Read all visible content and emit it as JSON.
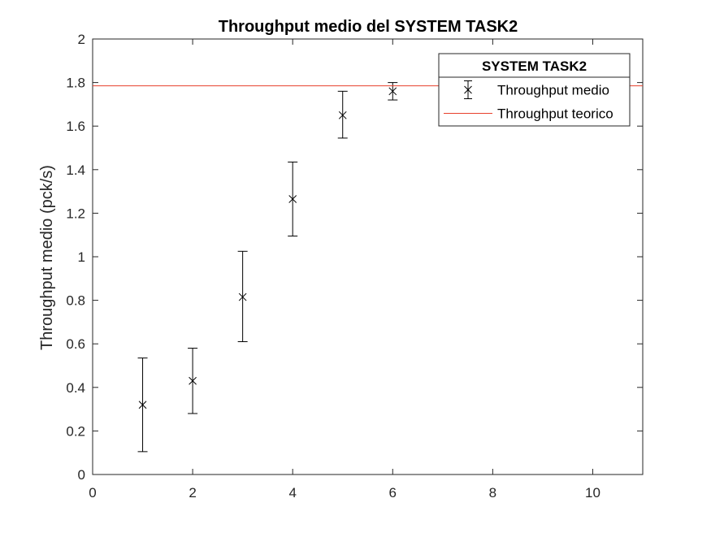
{
  "chart_data": {
    "type": "scatter",
    "title": "Throughput medio del SYSTEM TASK2",
    "xlabel": "",
    "ylabel": "Throughput medio (pck/s)",
    "xlim": [
      0,
      11
    ],
    "ylim": [
      0,
      2
    ],
    "x_ticks": [
      0,
      2,
      4,
      6,
      8,
      10
    ],
    "x_tick_labels": [
      "0",
      "2",
      "4",
      "6",
      "8",
      "10"
    ],
    "y_ticks": [
      0,
      0.2,
      0.4,
      0.6,
      0.8,
      1.0,
      1.2,
      1.4,
      1.6,
      1.8,
      2.0
    ],
    "y_tick_labels": [
      "0",
      "0.2",
      "0.4",
      "0.6",
      "0.8",
      "1",
      "1.2",
      "1.4",
      "1.6",
      "1.8",
      "2"
    ],
    "grid": false,
    "legend": {
      "title": "SYSTEM TASK2",
      "placement": "top-right",
      "entries": [
        "Throughput medio",
        "Throughput teorico"
      ]
    },
    "series": [
      {
        "name": "Throughput medio",
        "kind": "errorbar",
        "marker": "x",
        "color": "#000000",
        "points": [
          {
            "x": 1,
            "y": 0.32,
            "low": 0.105,
            "high": 0.535
          },
          {
            "x": 2,
            "y": 0.43,
            "low": 0.28,
            "high": 0.58
          },
          {
            "x": 3,
            "y": 0.815,
            "low": 0.61,
            "high": 1.025
          },
          {
            "x": 4,
            "y": 1.265,
            "low": 1.095,
            "high": 1.435
          },
          {
            "x": 5,
            "y": 1.65,
            "low": 1.545,
            "high": 1.76
          },
          {
            "x": 6,
            "y": 1.76,
            "low": 1.72,
            "high": 1.8
          }
        ]
      },
      {
        "name": "Throughput teorico",
        "kind": "hline",
        "color": "#e8412c",
        "y": 1.785
      }
    ]
  }
}
